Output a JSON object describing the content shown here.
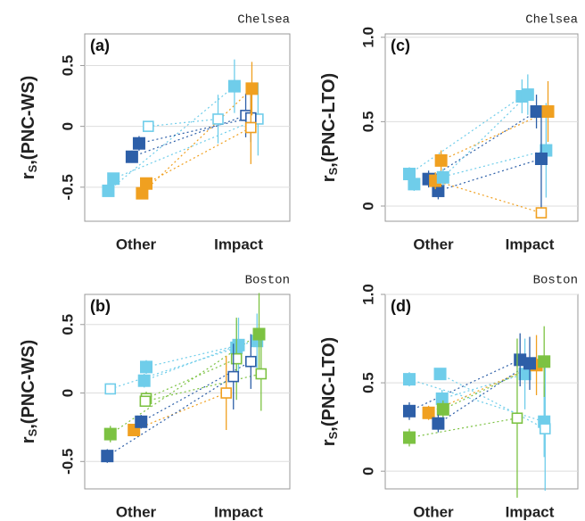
{
  "chart_data": [
    {
      "type": "scatter",
      "panel": "(a)",
      "site": "Chelsea",
      "ylabel": {
        "base": "r",
        "sub": "S",
        "rest": ",(PNC-WS)"
      },
      "xlim": [
        0.5,
        2.5
      ],
      "xticks": [
        {
          "value": 1,
          "label": "Other"
        },
        {
          "value": 2,
          "label": "Impact"
        }
      ],
      "ylim": [
        -0.78,
        0.76
      ],
      "yticks": [
        -0.5,
        0,
        0.5
      ],
      "grid": true,
      "series": [
        {
          "color": "#6fcdea",
          "filled": [
            true,
            true
          ],
          "x": [
            0.73,
            1.96
          ],
          "values": [
            -0.53,
            0.33
          ],
          "errors": [
            0.03,
            0.22
          ]
        },
        {
          "color": "#6fcdea",
          "filled": [
            true,
            false
          ],
          "x": [
            0.78,
            2.19
          ],
          "values": [
            -0.43,
            0.06
          ],
          "errors": [
            0.04,
            0.3
          ]
        },
        {
          "color": "#6fcdea",
          "filled": [
            false,
            false
          ],
          "x": [
            1.12,
            1.8
          ],
          "values": [
            0.0,
            0.06
          ],
          "errors": [
            0.03,
            0.2
          ]
        },
        {
          "color": "#2d5fa8",
          "filled": [
            true,
            false
          ],
          "x": [
            0.96,
            2.07
          ],
          "values": [
            -0.25,
            0.09
          ],
          "errors": [
            0.05,
            0.18
          ]
        },
        {
          "color": "#2d5fa8",
          "filled": [
            true,
            false
          ],
          "x": [
            1.03,
            2.12
          ],
          "values": [
            -0.14,
            0.07
          ],
          "errors": [
            0.06,
            0.2
          ]
        },
        {
          "color": "#f0a020",
          "filled": [
            true,
            true
          ],
          "x": [
            1.06,
            2.13
          ],
          "values": [
            -0.55,
            0.31
          ],
          "errors": [
            0.04,
            0.22
          ]
        },
        {
          "color": "#f0a020",
          "filled": [
            true,
            false
          ],
          "x": [
            1.1,
            2.12
          ],
          "values": [
            -0.47,
            -0.01
          ],
          "errors": [
            0.03,
            0.3
          ]
        }
      ]
    },
    {
      "type": "scatter",
      "panel": "(b)",
      "site": "Boston",
      "ylabel": {
        "base": "r",
        "sub": "S",
        "rest": ",(PNC-WS)"
      },
      "xlim": [
        0.5,
        2.5
      ],
      "xticks": [
        {
          "value": 1,
          "label": "Other"
        },
        {
          "value": 2,
          "label": "Impact"
        }
      ],
      "ylim": [
        -0.7,
        0.72
      ],
      "yticks": [
        -0.5,
        0,
        0.5
      ],
      "grid": true,
      "series": [
        {
          "color": "#6fcdea",
          "filled": [
            false,
            true
          ],
          "x": [
            0.75,
            1.98
          ],
          "values": [
            0.03,
            0.33
          ],
          "errors": [
            0.04,
            0.2
          ]
        },
        {
          "color": "#6fcdea",
          "filled": [
            true,
            true
          ],
          "x": [
            1.1,
            2.18
          ],
          "values": [
            0.19,
            0.38
          ],
          "errors": [
            0.05,
            0.2
          ]
        },
        {
          "color": "#6fcdea",
          "filled": [
            true,
            true
          ],
          "x": [
            1.08,
            2.0
          ],
          "values": [
            0.09,
            0.35
          ],
          "errors": [
            0.05,
            0.2
          ]
        },
        {
          "color": "#7cc242",
          "filled": [
            false,
            false
          ],
          "x": [
            1.1,
            1.98
          ],
          "values": [
            -0.04,
            0.25
          ],
          "errors": [
            0.05,
            0.3
          ]
        },
        {
          "color": "#7cc242",
          "filled": [
            true,
            true
          ],
          "x": [
            0.75,
            2.2
          ],
          "values": [
            -0.3,
            0.43
          ],
          "errors": [
            0.06,
            0.3
          ]
        },
        {
          "color": "#7cc242",
          "filled": [
            false,
            false
          ],
          "x": [
            1.09,
            2.22
          ],
          "values": [
            -0.06,
            0.14
          ],
          "errors": [
            0.04,
            0.27
          ]
        },
        {
          "color": "#f0a020",
          "filled": [
            true,
            false
          ],
          "x": [
            0.98,
            1.88
          ],
          "values": [
            -0.27,
            0.0
          ],
          "errors": [
            0.04,
            0.27
          ]
        },
        {
          "color": "#2d5fa8",
          "filled": [
            true,
            false
          ],
          "x": [
            1.05,
            2.12
          ],
          "values": [
            -0.21,
            0.23
          ],
          "errors": [
            0.05,
            0.2
          ]
        },
        {
          "color": "#2d5fa8",
          "filled": [
            true,
            false
          ],
          "x": [
            0.72,
            1.95
          ],
          "values": [
            -0.46,
            0.12
          ],
          "errors": [
            0.05,
            0.24
          ]
        }
      ]
    },
    {
      "type": "scatter",
      "panel": "(c)",
      "site": "Chelsea",
      "ylabel": {
        "base": "r",
        "sub": "S",
        "rest": ",(PNC-LTO)"
      },
      "xlim": [
        0.5,
        2.5
      ],
      "xticks": [
        {
          "value": 1,
          "label": "Other"
        },
        {
          "value": 2,
          "label": "Impact"
        }
      ],
      "ylim": [
        -0.09,
        1.02
      ],
      "yticks": [
        0,
        0.5,
        {
          "value": 1,
          "label": "1.0"
        }
      ],
      "grid": true,
      "series": [
        {
          "color": "#6fcdea",
          "filled": [
            true,
            true
          ],
          "x": [
            0.75,
            1.92
          ],
          "values": [
            0.19,
            0.65
          ],
          "errors": [
            0.04,
            0.1
          ]
        },
        {
          "color": "#6fcdea",
          "filled": [
            true,
            true
          ],
          "x": [
            0.8,
            2.17
          ],
          "values": [
            0.13,
            0.33
          ],
          "errors": [
            0.04,
            0.28
          ]
        },
        {
          "color": "#2d5fa8",
          "filled": [
            true,
            true
          ],
          "x": [
            0.95,
            2.07
          ],
          "values": [
            0.16,
            0.56
          ],
          "errors": [
            0.05,
            0.1
          ]
        },
        {
          "color": "#2d5fa8",
          "filled": [
            true,
            true
          ],
          "x": [
            1.05,
            2.12
          ],
          "values": [
            0.09,
            0.28
          ],
          "errors": [
            0.05,
            0.3
          ]
        },
        {
          "color": "#f0a020",
          "filled": [
            true,
            true
          ],
          "x": [
            1.08,
            2.19
          ],
          "values": [
            0.27,
            0.56
          ],
          "errors": [
            0.06,
            0.18
          ]
        },
        {
          "color": "#f0a020",
          "filled": [
            true,
            false
          ],
          "x": [
            1.02,
            2.12
          ],
          "values": [
            0.15,
            -0.04
          ],
          "errors": [
            0.05,
            0.03
          ]
        },
        {
          "color": "#6fcdea",
          "filled": [
            true,
            true
          ],
          "x": [
            1.1,
            1.98
          ],
          "values": [
            0.17,
            0.66
          ],
          "errors": [
            0.05,
            0.12
          ]
        }
      ]
    },
    {
      "type": "scatter",
      "panel": "(d)",
      "site": "Boston",
      "ylabel": {
        "base": "r",
        "sub": "S",
        "rest": ",(PNC-LTO)"
      },
      "xlim": [
        0.5,
        2.5
      ],
      "xticks": [
        {
          "value": 1,
          "label": "Other"
        },
        {
          "value": 2,
          "label": "Impact"
        }
      ],
      "ylim": [
        -0.1,
        1.0
      ],
      "yticks": [
        0,
        0.5,
        {
          "value": 1,
          "label": "1.0"
        }
      ],
      "grid": true,
      "series": [
        {
          "color": "#6fcdea",
          "filled": [
            true,
            true
          ],
          "x": [
            0.75,
            2.15
          ],
          "values": [
            0.52,
            0.28
          ],
          "errors": [
            0.04,
            0.2
          ]
        },
        {
          "color": "#6fcdea",
          "filled": [
            true,
            false
          ],
          "x": [
            1.07,
            2.16
          ],
          "values": [
            0.55,
            0.24
          ],
          "errors": [
            0.03,
            0.35
          ]
        },
        {
          "color": "#6fcdea",
          "filled": [
            true,
            true
          ],
          "x": [
            1.09,
            1.95
          ],
          "values": [
            0.41,
            0.55
          ],
          "errors": [
            0.05,
            0.2
          ]
        },
        {
          "color": "#2d5fa8",
          "filled": [
            true,
            true
          ],
          "x": [
            0.75,
            1.9
          ],
          "values": [
            0.34,
            0.63
          ],
          "errors": [
            0.05,
            0.15
          ]
        },
        {
          "color": "#f0a020",
          "filled": [
            true,
            true
          ],
          "x": [
            0.95,
            2.07
          ],
          "values": [
            0.33,
            0.6
          ],
          "errors": [
            0.04,
            0.17
          ]
        },
        {
          "color": "#7cc242",
          "filled": [
            true,
            true
          ],
          "x": [
            1.1,
            2.15
          ],
          "values": [
            0.35,
            0.62
          ],
          "errors": [
            0.05,
            0.2
          ]
        },
        {
          "color": "#2d5fa8",
          "filled": [
            true,
            true
          ],
          "x": [
            1.05,
            2.0
          ],
          "values": [
            0.27,
            0.61
          ],
          "errors": [
            0.05,
            0.15
          ]
        },
        {
          "color": "#7cc242",
          "filled": [
            true,
            false
          ],
          "x": [
            0.75,
            1.87
          ],
          "values": [
            0.19,
            0.3
          ],
          "errors": [
            0.05,
            0.45
          ]
        }
      ]
    }
  ]
}
